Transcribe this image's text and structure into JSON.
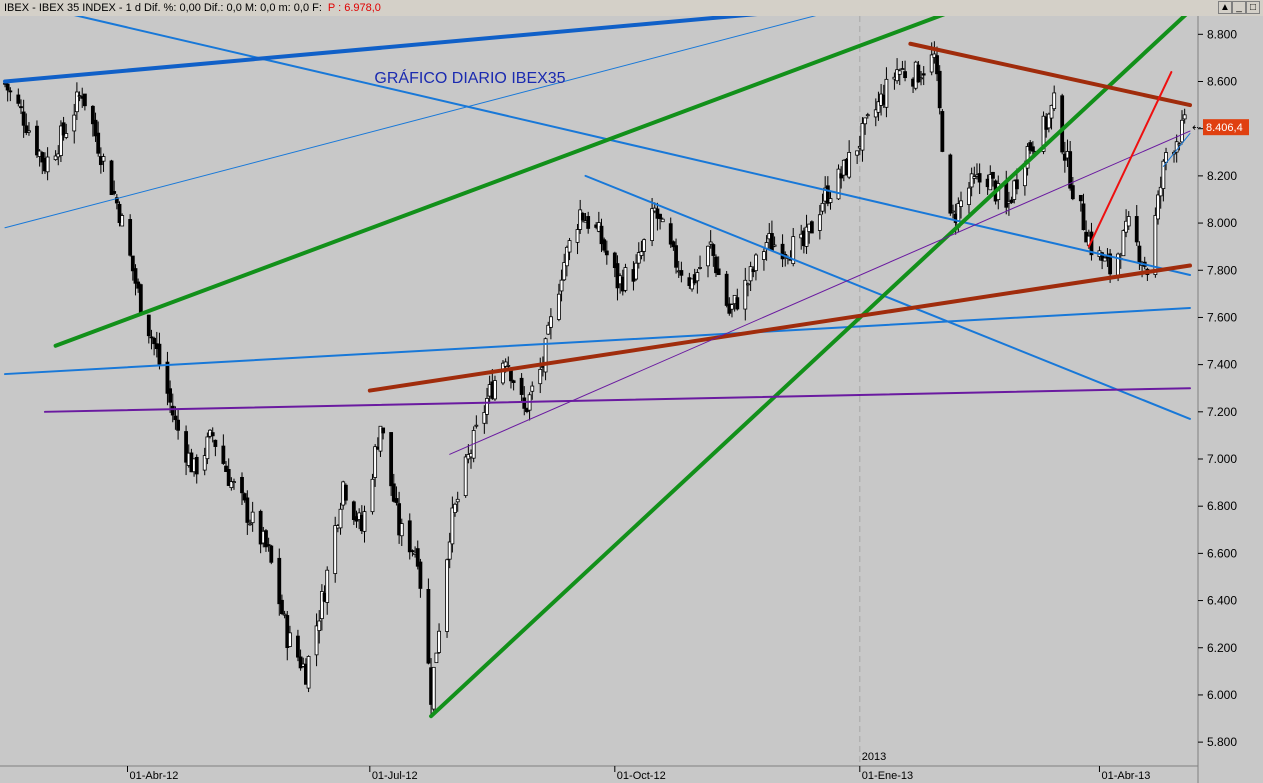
{
  "window": {
    "info_text": "IBEX - IBEX 35 INDEX - 1 d Dif. %: 0,00  Dif.: 0,0  M: 0,0  m: 0,0  F:",
    "price_text": "P : 6.978,0",
    "buttons": {
      "scroll_up": "▲",
      "minimize": "_",
      "maximize": "□",
      "close": "✕"
    }
  },
  "colors": {
    "plot_bg": "#c8c8c8",
    "axis_bg": "#c8c8c8",
    "candle": "#000000",
    "current_price_bg": "#e04010",
    "blue": "#1878d8",
    "thick_blue": "#1060c8",
    "green": "#12901a",
    "brown": "#a02c0c",
    "purple": "#6a1aa0",
    "red": "#ee1010",
    "title_text": "#1a2ab0"
  },
  "chart_data": {
    "type": "candlestick",
    "title": "GRÁFICO DIARIO IBEX35",
    "y_ticks": [
      "8.800",
      "8.600",
      "8.400",
      "8.200",
      "8.000",
      "7.800",
      "7.600",
      "7.400",
      "7.200",
      "7.000",
      "6.800",
      "6.600",
      "6.400",
      "6.200",
      "6.000",
      "5.800"
    ],
    "y_range": [
      5720,
      8920
    ],
    "x_range": [
      "2012-02-15",
      "2013-05-05"
    ],
    "x_ticks": [
      {
        "date": "2012-04-01",
        "label": "01-Abr-12"
      },
      {
        "date": "2012-07-01",
        "label": "01-Jul-12"
      },
      {
        "date": "2012-10-01",
        "label": "01-Oct-12"
      },
      {
        "date": "2013-01-01",
        "label": "01-Ene-13"
      },
      {
        "date": "2013-04-01",
        "label": "01-Abr-13"
      }
    ],
    "year_marker": {
      "date": "2013-01-01",
      "label": "2013"
    },
    "current_price": {
      "value": 8406.4,
      "label": "8.406,4"
    },
    "series_close": [
      [
        "2012-02-15",
        8590
      ],
      [
        "2012-02-22",
        8450
      ],
      [
        "2012-03-01",
        8250
      ],
      [
        "2012-03-08",
        8380
      ],
      [
        "2012-03-15",
        8560
      ],
      [
        "2012-03-22",
        8300
      ],
      [
        "2012-03-29",
        8050
      ],
      [
        "2012-04-05",
        7700
      ],
      [
        "2012-04-12",
        7450
      ],
      [
        "2012-04-19",
        7150
      ],
      [
        "2012-04-26",
        6950
      ],
      [
        "2012-05-03",
        7100
      ],
      [
        "2012-05-10",
        6900
      ],
      [
        "2012-05-17",
        6750
      ],
      [
        "2012-05-24",
        6600
      ],
      [
        "2012-05-31",
        6250
      ],
      [
        "2012-06-07",
        6100
      ],
      [
        "2012-06-14",
        6450
      ],
      [
        "2012-06-21",
        6900
      ],
      [
        "2012-06-28",
        6700
      ],
      [
        "2012-07-05",
        7150
      ],
      [
        "2012-07-12",
        6700
      ],
      [
        "2012-07-19",
        6600
      ],
      [
        "2012-07-24",
        6000
      ],
      [
        "2012-07-31",
        6700
      ],
      [
        "2012-08-07",
        7000
      ],
      [
        "2012-08-14",
        7250
      ],
      [
        "2012-08-21",
        7450
      ],
      [
        "2012-08-28",
        7200
      ],
      [
        "2012-09-04",
        7400
      ],
      [
        "2012-09-11",
        7800
      ],
      [
        "2012-09-18",
        8050
      ],
      [
        "2012-09-25",
        7950
      ],
      [
        "2012-10-02",
        7750
      ],
      [
        "2012-10-09",
        7800
      ],
      [
        "2012-10-16",
        8050
      ],
      [
        "2012-10-23",
        7850
      ],
      [
        "2012-10-30",
        7750
      ],
      [
        "2012-11-06",
        7900
      ],
      [
        "2012-11-13",
        7620
      ],
      [
        "2012-11-20",
        7750
      ],
      [
        "2012-11-27",
        7920
      ],
      [
        "2012-12-04",
        7900
      ],
      [
        "2012-12-11",
        7900
      ],
      [
        "2012-12-18",
        8100
      ],
      [
        "2012-12-25",
        8200
      ],
      [
        "2013-01-01",
        8350
      ],
      [
        "2013-01-08",
        8500
      ],
      [
        "2013-01-15",
        8650
      ],
      [
        "2013-01-22",
        8630
      ],
      [
        "2013-01-29",
        8700
      ],
      [
        "2013-02-04",
        8000
      ],
      [
        "2013-02-11",
        8150
      ],
      [
        "2013-02-18",
        8200
      ],
      [
        "2013-02-25",
        8050
      ],
      [
        "2013-03-04",
        8300
      ],
      [
        "2013-03-11",
        8400
      ],
      [
        "2013-03-15",
        8500
      ],
      [
        "2013-03-22",
        8150
      ],
      [
        "2013-03-29",
        7900
      ],
      [
        "2013-04-05",
        7800
      ],
      [
        "2013-04-12",
        7980
      ],
      [
        "2013-04-19",
        7800
      ],
      [
        "2013-04-26",
        8300
      ],
      [
        "2013-05-03",
        8406
      ]
    ],
    "trendlines": [
      {
        "color": "blue",
        "width": 2,
        "from": [
          "2012-02-15",
          8950
        ],
        "to": [
          "2013-05-05",
          7780
        ]
      },
      {
        "color": "blue",
        "width": 1,
        "from": [
          "2012-02-15",
          7980
        ],
        "to": [
          "2013-01-05",
          8940
        ]
      },
      {
        "color": "thick_blue",
        "width": 4,
        "from": [
          "2012-02-15",
          8600
        ],
        "to": [
          "2013-01-01",
          8925
        ]
      },
      {
        "color": "blue",
        "width": 2,
        "from": [
          "2012-02-15",
          7360
        ],
        "to": [
          "2013-05-05",
          7640
        ]
      },
      {
        "color": "blue",
        "width": 2,
        "from": [
          "2012-09-20",
          8200
        ],
        "to": [
          "2013-05-05",
          7170
        ]
      },
      {
        "color": "blue",
        "width": 1,
        "from": [
          "2013-04-25",
          8240
        ],
        "to": [
          "2013-05-05",
          8380
        ]
      },
      {
        "color": "green",
        "width": 4,
        "from": [
          "2012-03-05",
          7480
        ],
        "to": [
          "2013-02-10",
          8920
        ]
      },
      {
        "color": "green",
        "width": 4,
        "from": [
          "2012-07-24",
          5910
        ],
        "to": [
          "2013-05-05",
          8900
        ]
      },
      {
        "color": "brown",
        "width": 4,
        "from": [
          "2012-07-01",
          7290
        ],
        "to": [
          "2013-05-05",
          7820
        ]
      },
      {
        "color": "brown",
        "width": 4,
        "from": [
          "2013-01-20",
          8760
        ],
        "to": [
          "2013-05-05",
          8500
        ]
      },
      {
        "color": "purple",
        "width": 2,
        "from": [
          "2012-03-01",
          7200
        ],
        "to": [
          "2013-05-05",
          7300
        ]
      },
      {
        "color": "purple",
        "width": 1,
        "from": [
          "2012-07-31",
          7020
        ],
        "to": [
          "2013-05-05",
          8390
        ]
      },
      {
        "color": "red",
        "width": 2,
        "from": [
          "2013-03-28",
          7900
        ],
        "to": [
          "2013-04-28",
          8640
        ]
      }
    ]
  }
}
